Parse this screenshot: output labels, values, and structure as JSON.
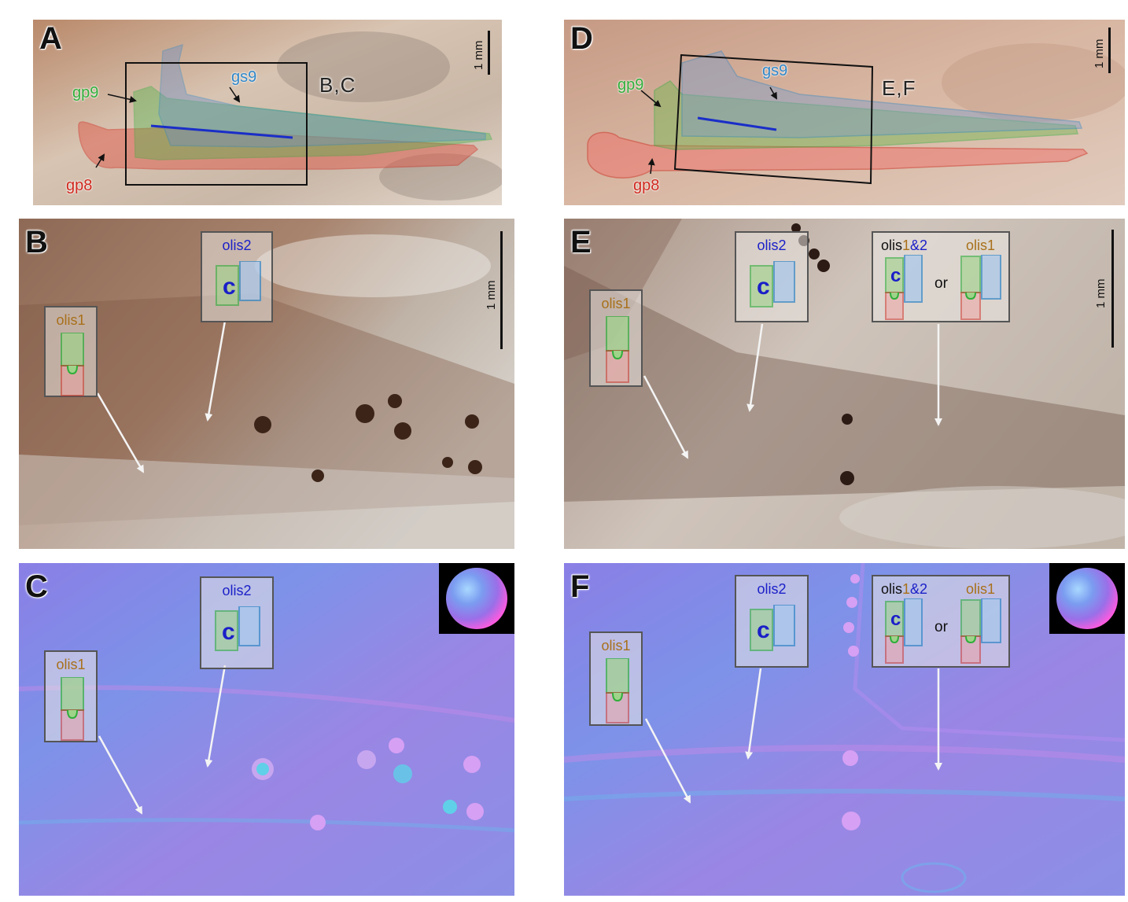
{
  "panels": {
    "a": {
      "label": "A",
      "scale": "1 mm",
      "box_label": "B,C",
      "tags": {
        "gp9": "gp9",
        "gs9": "gs9",
        "gp8": "gp8"
      }
    },
    "b": {
      "label": "B",
      "scale": "1 mm"
    },
    "c": {
      "label": "C"
    },
    "d": {
      "label": "D",
      "scale": "1 mm",
      "box_label": "E,F",
      "tags": {
        "gp9": "gp9",
        "gs9": "gs9",
        "gp8": "gp8"
      }
    },
    "e": {
      "label": "E",
      "scale": "1 mm"
    },
    "f": {
      "label": "F"
    }
  },
  "insets": {
    "olis1": "olis1",
    "olis2": "olis2",
    "olis_combined_prefix": "olis",
    "olis_combined_suffix_1": "1",
    "olis_combined_suffix_2": "&2",
    "or": "or"
  },
  "colors": {
    "gp9": "#2fae3a",
    "gs9": "#2f86c8",
    "gp8": "#d0281e",
    "olis1": "#a8701a",
    "olis2": "#1a1fc8"
  }
}
